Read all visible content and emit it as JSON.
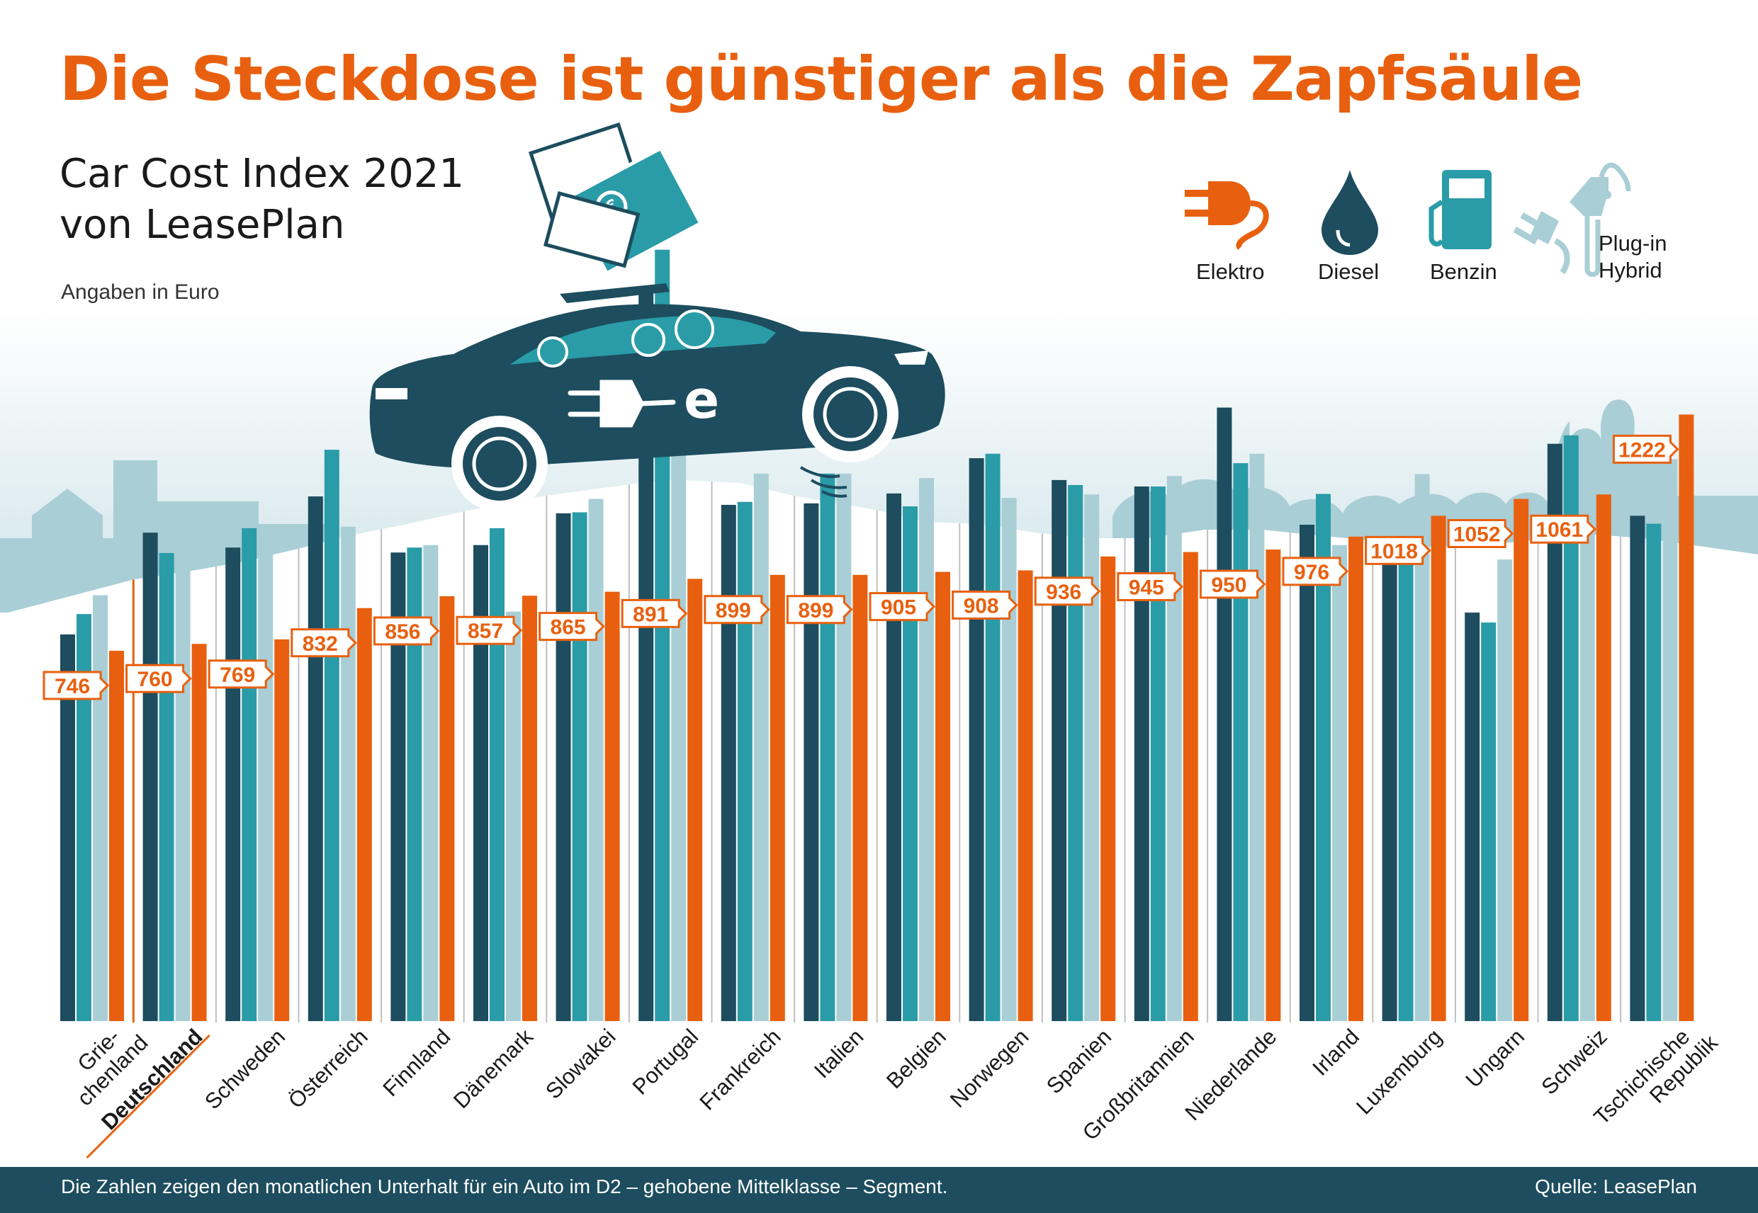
{
  "header": {
    "title": "Die Steckdose ist günstiger als die Zapfsäule",
    "subtitle_line1": "Car Cost Index 2021",
    "subtitle_line2": "von LeasePlan",
    "unit_note": "Angaben in Euro"
  },
  "legend": {
    "items": [
      {
        "label": "Elektro",
        "icon": "plug-icon",
        "color": "#e8600f"
      },
      {
        "label": "Diesel",
        "icon": "drop-icon",
        "color": "#1d4d5e"
      },
      {
        "label": "Benzin",
        "icon": "fuel-pump-icon",
        "color": "#2a9ca8"
      },
      {
        "label_line1": "Plug-in",
        "label_line2": "Hybrid",
        "icon": "plug-hose-icon",
        "color": "#a9ced6"
      }
    ]
  },
  "colors": {
    "diesel": "#1d4d5e",
    "benzin": "#2a9ca8",
    "plugin_hybrid": "#a9ced6",
    "elektro": "#e8600f",
    "highlight": "#e8600f",
    "background_shape": "#a9ced6"
  },
  "chart_data": {
    "type": "bar",
    "ylim": [
      0,
      1500
    ],
    "categories": [
      {
        "line1": "Grie-",
        "line2": "chenland"
      },
      {
        "line1": "Deutschland",
        "highlight": true
      },
      {
        "line1": "Schweden"
      },
      {
        "line1": "Österreich"
      },
      {
        "line1": "Finnland"
      },
      {
        "line1": "Dänemark"
      },
      {
        "line1": "Slowakei"
      },
      {
        "line1": "Portugal"
      },
      {
        "line1": "Frankreich"
      },
      {
        "line1": "Italien"
      },
      {
        "line1": "Belgien"
      },
      {
        "line1": "Norwegen"
      },
      {
        "line1": "Spanien"
      },
      {
        "line1": "Großbritannien"
      },
      {
        "line1": "Niederlande"
      },
      {
        "line1": "Irland"
      },
      {
        "line1": "Luxemburg"
      },
      {
        "line1": "Ungarn"
      },
      {
        "line1": "Schweiz"
      },
      {
        "line1": "Tschichische",
        "line2": "Republik"
      }
    ],
    "series": [
      {
        "name": "Diesel",
        "values": [
          779,
          984,
          954,
          1057,
          944,
          959,
          1023,
          1470,
          1040,
          1043,
          1063,
          1134,
          1090,
          1077,
          1236,
          1000,
          939,
          823,
          1163,
          1018
        ]
      },
      {
        "name": "Benzin",
        "values": [
          820,
          943,
          993,
          1151,
          954,
          993,
          1025,
          1554,
          1046,
          1103,
          1037,
          1143,
          1080,
          1077,
          1124,
          1062,
          945,
          803,
          1180,
          1002
        ]
      },
      {
        "name": "Plug-in Hybrid",
        "values": [
          858,
          925,
          959,
          996,
          959,
          825,
          1052,
          1179,
          1103,
          1103,
          1094,
          1054,
          1061,
          1098,
          1143,
          959,
          1102,
          930,
          1164,
          1132
        ]
      },
      {
        "name": "Elektro",
        "values": [
          746,
          760,
          769,
          832,
          856,
          857,
          865,
          891,
          899,
          899,
          905,
          908,
          936,
          945,
          950,
          976,
          1018,
          1052,
          1061,
          1222
        ]
      }
    ]
  },
  "footer": {
    "note": "Die Zahlen zeigen den monatlichen Unterhalt für ein Auto im D2 – gehobene Mittelklasse – Segment.",
    "source": "Quelle: LeasePlan"
  }
}
